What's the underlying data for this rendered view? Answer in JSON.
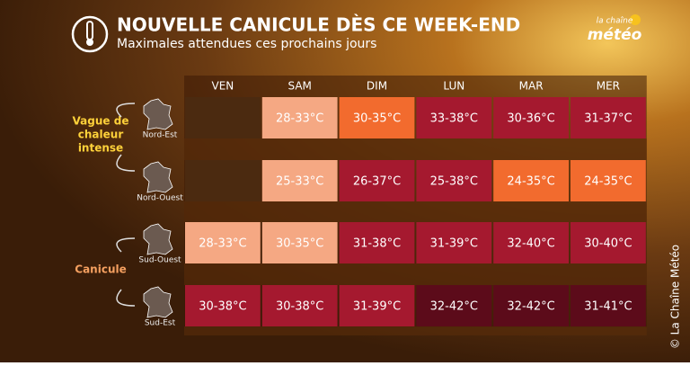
{
  "header": {
    "title": "NOUVELLE CANICULE DÈS CE WEEK-END",
    "subtitle": "Maximales attendues ces prochains jours",
    "logo": [
      "la chaîne",
      "météo"
    ]
  },
  "table": {
    "columns": [
      "VEN",
      "SAM",
      "DIM",
      "LUN",
      "MAR",
      "MER"
    ],
    "rows": [
      {
        "region": "Nord-Est",
        "cells": [
          null,
          "28-33°C",
          "30-35°C",
          "33-38°C",
          "30-36°C",
          "31-37°C"
        ],
        "colors": [
          "#4b2a10",
          "#f5a883",
          "#f26b2e",
          "#a5192f",
          "#a5192f",
          "#a5192f"
        ]
      },
      {
        "region": "Nord-Ouest",
        "cells": [
          null,
          "25-33°C",
          "26-37°C",
          "25-38°C",
          "24-35°C",
          "24-35°C"
        ],
        "colors": [
          "#4b2a10",
          "#f5a883",
          "#a5192f",
          "#a5192f",
          "#f26b2e",
          "#f26b2e"
        ]
      },
      {
        "region": "Sud-Ouest",
        "cells": [
          "28-33°C",
          "30-35°C",
          "31-38°C",
          "31-39°C",
          "32-40°C",
          "30-40°C"
        ],
        "colors": [
          "#f5a883",
          "#f5a883",
          "#a5192f",
          "#a5192f",
          "#a5192f",
          "#a5192f"
        ]
      },
      {
        "region": "Sud-Est",
        "cells": [
          "30-38°C",
          "30-38°C",
          "31-39°C",
          "32-42°C",
          "32-42°C",
          "31-41°C"
        ],
        "colors": [
          "#a5192f",
          "#a5192f",
          "#a5192f",
          "#5c0b1a",
          "#5c0b1a",
          "#5c0b1a"
        ]
      }
    ]
  },
  "groups": [
    {
      "label": [
        "Vague de",
        "chaleur",
        "intense"
      ],
      "color": "#ffd23a"
    },
    {
      "label": [
        "Canicule"
      ],
      "color": "#f5a060"
    }
  ],
  "copyright": "© La Chaîne Météo"
}
